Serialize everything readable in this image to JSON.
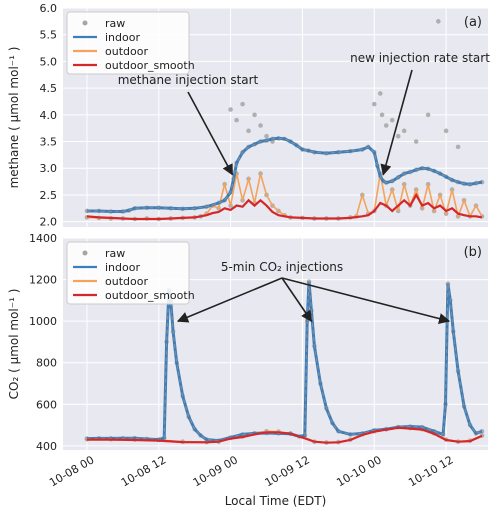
{
  "colors": {
    "background": "#e8e8f0",
    "grid": "#ffffff",
    "raw": "#a5a5a5",
    "indoor": "#3a7ebd",
    "indoor_dash": "#8c8c8c",
    "outdoor": "#f3a35b",
    "outdoor_smooth": "#d62728"
  },
  "xlabel": "Local Time (EDT)",
  "legend": [
    "raw",
    "indoor",
    "outdoor",
    "outdoor_smooth"
  ],
  "chart_data": [
    {
      "type": "line",
      "panel_label": "(a)",
      "ylabel": "methane ( μmol mol⁻¹ )",
      "ylim": [
        1.9,
        6.0
      ],
      "yticks": [
        "2.0",
        "2.5",
        "3.0",
        "3.5",
        "4.0",
        "4.5",
        "5.0",
        "5.5",
        "6.0"
      ],
      "xlim": [
        -4,
        67
      ],
      "xticks": [
        "10-08 00",
        "10-08 12",
        "10-09 00",
        "10-09 12",
        "10-10 00",
        "10-10 12"
      ],
      "xtick_hours": [
        0,
        12,
        24,
        36,
        48,
        60
      ],
      "annotations": [
        {
          "text": "methane injection start",
          "arrow_to": [
            24.3,
            2.88
          ]
        },
        {
          "text": "new injection rate start",
          "arrow_to": [
            49.5,
            2.88
          ]
        }
      ],
      "series": [
        {
          "name": "indoor",
          "x": [
            0,
            2,
            4,
            6,
            7,
            8,
            10,
            12,
            14,
            16,
            18,
            20,
            22,
            23,
            24,
            24.5,
            25,
            26,
            27,
            28,
            29,
            30,
            31,
            32,
            33,
            34,
            35,
            36,
            37,
            38,
            40,
            42,
            44,
            46,
            47,
            48,
            48.5,
            49,
            49.5,
            50,
            51,
            52,
            53,
            54,
            55,
            56,
            57,
            58,
            59,
            60,
            61,
            62,
            63,
            64,
            65,
            66
          ],
          "y": [
            2.2,
            2.2,
            2.19,
            2.19,
            2.21,
            2.25,
            2.26,
            2.26,
            2.25,
            2.24,
            2.25,
            2.28,
            2.35,
            2.4,
            2.55,
            2.8,
            3.1,
            3.3,
            3.4,
            3.45,
            3.5,
            3.52,
            3.55,
            3.56,
            3.55,
            3.5,
            3.43,
            3.35,
            3.33,
            3.3,
            3.28,
            3.3,
            3.32,
            3.35,
            3.4,
            3.3,
            3.05,
            2.85,
            2.76,
            2.73,
            2.76,
            2.83,
            2.9,
            2.93,
            2.97,
            3.0,
            2.99,
            2.95,
            2.9,
            2.84,
            2.78,
            2.74,
            2.71,
            2.7,
            2.72,
            2.74
          ]
        },
        {
          "name": "outdoor",
          "x": [
            0,
            2,
            4,
            6,
            8,
            10,
            12,
            14,
            16,
            18,
            19,
            20,
            21,
            22,
            23,
            24,
            25,
            26,
            27,
            28,
            29,
            30,
            31,
            32,
            33,
            34,
            36,
            38,
            40,
            42,
            44,
            45,
            46,
            47,
            48,
            49,
            50,
            51,
            52,
            53,
            54,
            55,
            56,
            57,
            58,
            59,
            60,
            61,
            62,
            63,
            64,
            65,
            66
          ],
          "y": [
            2.08,
            2.07,
            2.06,
            2.06,
            2.05,
            2.06,
            2.05,
            2.06,
            2.07,
            2.08,
            2.1,
            2.15,
            2.3,
            2.25,
            2.7,
            2.3,
            2.9,
            2.4,
            2.8,
            2.35,
            2.9,
            2.5,
            2.3,
            2.2,
            2.12,
            2.08,
            2.07,
            2.06,
            2.06,
            2.06,
            2.08,
            2.1,
            2.5,
            2.15,
            2.2,
            2.9,
            2.3,
            2.6,
            2.2,
            2.7,
            2.3,
            2.6,
            2.25,
            2.7,
            2.2,
            2.5,
            2.15,
            2.6,
            2.1,
            2.4,
            2.1,
            2.3,
            2.1
          ]
        },
        {
          "name": "outdoor_smooth",
          "x": [
            0,
            2,
            4,
            6,
            8,
            10,
            12,
            14,
            16,
            18,
            20,
            21,
            22,
            23,
            24,
            25,
            26,
            27,
            28,
            29,
            30,
            31,
            32,
            33,
            34,
            36,
            38,
            40,
            42,
            44,
            46,
            47,
            48,
            49,
            50,
            51,
            52,
            53,
            54,
            55,
            56,
            57,
            58,
            59,
            60,
            61,
            62,
            63,
            64,
            65,
            66
          ],
          "y": [
            2.1,
            2.08,
            2.07,
            2.06,
            2.05,
            2.05,
            2.05,
            2.06,
            2.07,
            2.08,
            2.12,
            2.16,
            2.18,
            2.25,
            2.22,
            2.3,
            2.28,
            2.4,
            2.3,
            2.4,
            2.3,
            2.18,
            2.12,
            2.1,
            2.08,
            2.07,
            2.06,
            2.06,
            2.06,
            2.07,
            2.1,
            2.12,
            2.2,
            2.35,
            2.3,
            2.2,
            2.3,
            2.4,
            2.3,
            2.5,
            2.3,
            2.35,
            2.25,
            2.3,
            2.2,
            2.25,
            2.15,
            2.12,
            2.1,
            2.1,
            2.08
          ]
        },
        {
          "name": "raw",
          "x": [
            24,
            25,
            26,
            27,
            28,
            29,
            30,
            31,
            48,
            49,
            49.3,
            50,
            51,
            52,
            53,
            55,
            57,
            58.7,
            60,
            62
          ],
          "y": [
            4.1,
            3.9,
            4.2,
            3.7,
            4.0,
            3.8,
            3.6,
            3.5,
            4.2,
            4.4,
            4.0,
            3.8,
            3.9,
            3.6,
            3.7,
            3.5,
            4.0,
            5.75,
            3.7,
            3.4
          ]
        }
      ]
    },
    {
      "type": "line",
      "panel_label": "(b)",
      "ylabel": "CO₂ ( μmol mol⁻¹ )",
      "ylim": [
        380,
        1400
      ],
      "yticks": [
        "400",
        "600",
        "800",
        "1000",
        "1200",
        "1400"
      ],
      "xlim": [
        -4,
        67
      ],
      "xticks": [
        "10-08 00",
        "10-08 12",
        "10-09 00",
        "10-09 12",
        "10-10 00",
        "10-10 12"
      ],
      "xtick_hours": [
        0,
        12,
        24,
        36,
        48,
        60
      ],
      "annotations": [
        {
          "text": "5-min CO₂ injections",
          "arrow_to": [
            [
              15.2,
              1000
            ],
            [
              37.5,
              1000
            ],
            [
              60.5,
              1000
            ]
          ]
        }
      ],
      "series": [
        {
          "name": "indoor",
          "x": [
            0,
            2,
            4,
            6,
            8,
            10,
            12,
            12.9,
            13.3,
            13.7,
            14.0,
            14.4,
            15,
            16,
            17,
            18,
            19,
            20,
            22,
            24,
            26,
            28,
            30,
            32,
            34,
            35.5,
            36.4,
            36.8,
            37.1,
            37.5,
            38,
            39,
            40,
            41,
            42,
            44,
            46,
            48,
            50,
            52,
            54,
            56,
            58,
            59.5,
            59.9,
            60.3,
            60.7,
            61.2,
            62,
            63,
            64,
            65,
            66
          ],
          "y": [
            435,
            436,
            436,
            437,
            437,
            433,
            430,
            438,
            900,
            1150,
            1100,
            950,
            800,
            640,
            540,
            480,
            450,
            430,
            425,
            440,
            455,
            460,
            462,
            460,
            458,
            445,
            450,
            1000,
            1190,
            1050,
            880,
            700,
            580,
            510,
            470,
            455,
            460,
            475,
            480,
            490,
            493,
            490,
            470,
            455,
            600,
            1180,
            1100,
            950,
            760,
            590,
            500,
            460,
            470
          ]
        },
        {
          "name": "outdoor",
          "x": [
            0,
            4,
            8,
            12,
            16,
            20,
            22,
            24,
            26,
            28,
            30,
            32,
            34,
            36,
            38,
            40,
            42,
            44,
            46,
            48,
            50,
            52,
            54,
            56,
            58,
            60,
            62,
            64,
            66
          ],
          "y": [
            432,
            432,
            430,
            428,
            420,
            418,
            420,
            438,
            445,
            460,
            470,
            468,
            460,
            445,
            420,
            416,
            418,
            430,
            455,
            470,
            480,
            490,
            485,
            480,
            460,
            430,
            420,
            425,
            450
          ]
        },
        {
          "name": "outdoor_smooth",
          "x": [
            0,
            4,
            8,
            12,
            16,
            20,
            22,
            24,
            26,
            28,
            30,
            32,
            34,
            36,
            38,
            40,
            42,
            44,
            46,
            48,
            50,
            52,
            54,
            56,
            58,
            60,
            62,
            64,
            66
          ],
          "y": [
            430,
            430,
            428,
            425,
            418,
            417,
            420,
            435,
            442,
            455,
            465,
            465,
            458,
            440,
            420,
            415,
            417,
            428,
            452,
            468,
            478,
            487,
            483,
            478,
            458,
            428,
            420,
            423,
            448
          ]
        }
      ]
    }
  ]
}
